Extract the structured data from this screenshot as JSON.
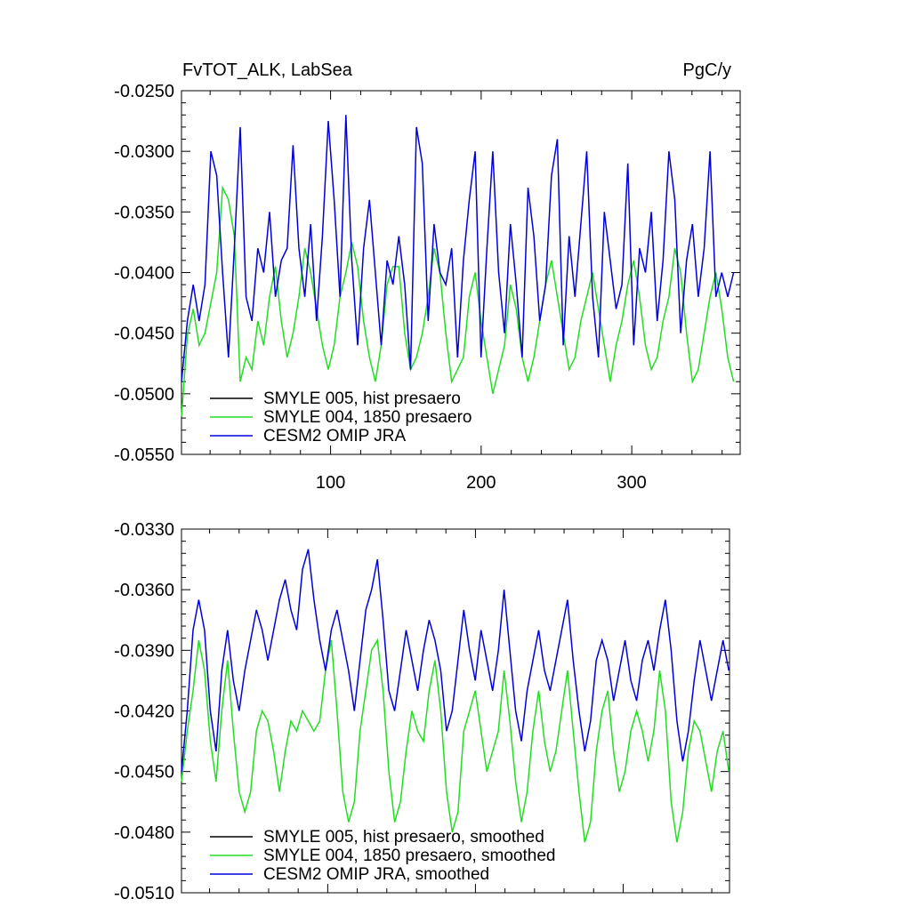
{
  "chart_data": [
    {
      "type": "line",
      "title_left": "FvTOT_ALK, LabSea",
      "title_right": "PgC/y",
      "xlabel": "",
      "ylabel": "",
      "xlim": [
        1,
        372
      ],
      "ylim": [
        -0.055,
        -0.025
      ],
      "xticks": [
        100,
        200,
        300
      ],
      "xtick_labels": [
        "100",
        "200",
        "300"
      ],
      "yticks": [
        -0.055,
        -0.05,
        -0.045,
        -0.04,
        -0.035,
        -0.03,
        -0.025
      ],
      "ytick_labels": [
        "-0.0550",
        "-0.0500",
        "-0.0450",
        "-0.0400",
        "-0.0350",
        "-0.0300",
        "-0.0250"
      ],
      "legend": [
        "SMYLE 005, hist presaero",
        "SMYLE 004, 1850 presaero",
        "CESM2 OMIP JRA"
      ],
      "legend_placement": "bottom-left",
      "colors": [
        "#000000",
        "#22dd22",
        "#0000dd"
      ],
      "grid": false,
      "series": [
        {
          "name": "SMYLE 005, hist presaero",
          "color": "#000000",
          "values": []
        },
        {
          "name": "SMYLE 004, 1850 presaero",
          "color": "#22dd22",
          "values": [
            -0.0519,
            -0.0452,
            -0.043,
            -0.046,
            -0.045,
            -0.0425,
            -0.04,
            -0.033,
            -0.034,
            -0.037,
            -0.049,
            -0.047,
            -0.048,
            -0.044,
            -0.046,
            -0.042,
            -0.0395,
            -0.044,
            -0.047,
            -0.045,
            -0.042,
            -0.038,
            -0.04,
            -0.043,
            -0.046,
            -0.048,
            -0.046,
            -0.042,
            -0.04,
            -0.0375,
            -0.0395,
            -0.044,
            -0.047,
            -0.049,
            -0.046,
            -0.041,
            -0.0395,
            -0.0395,
            -0.045,
            -0.048,
            -0.047,
            -0.045,
            -0.042,
            -0.038,
            -0.04,
            -0.045,
            -0.049,
            -0.048,
            -0.047,
            -0.042,
            -0.04,
            -0.044,
            -0.047,
            -0.05,
            -0.048,
            -0.046,
            -0.041,
            -0.043,
            -0.047,
            -0.049,
            -0.047,
            -0.044,
            -0.041,
            -0.039,
            -0.042,
            -0.045,
            -0.048,
            -0.047,
            -0.044,
            -0.042,
            -0.04,
            -0.043,
            -0.046,
            -0.049,
            -0.046,
            -0.044,
            -0.041,
            -0.039,
            -0.042,
            -0.046,
            -0.048,
            -0.047,
            -0.044,
            -0.042,
            -0.038,
            -0.04,
            -0.045,
            -0.049,
            -0.048,
            -0.045,
            -0.042,
            -0.04,
            -0.043,
            -0.047,
            -0.049
          ],
          "x_step": 3.9
        },
        {
          "name": "CESM2 OMIP JRA",
          "color": "#0000dd",
          "values": [
            -0.049,
            -0.044,
            -0.041,
            -0.044,
            -0.041,
            -0.03,
            -0.032,
            -0.04,
            -0.047,
            -0.038,
            -0.028,
            -0.042,
            -0.044,
            -0.038,
            -0.04,
            -0.035,
            -0.042,
            -0.039,
            -0.038,
            -0.0295,
            -0.038,
            -0.042,
            -0.036,
            -0.044,
            -0.037,
            -0.0275,
            -0.034,
            -0.042,
            -0.027,
            -0.039,
            -0.046,
            -0.038,
            -0.034,
            -0.04,
            -0.046,
            -0.039,
            -0.041,
            -0.037,
            -0.041,
            -0.048,
            -0.028,
            -0.031,
            -0.044,
            -0.036,
            -0.04,
            -0.041,
            -0.038,
            -0.047,
            -0.039,
            -0.034,
            -0.03,
            -0.047,
            -0.038,
            -0.03,
            -0.04,
            -0.045,
            -0.036,
            -0.041,
            -0.047,
            -0.033,
            -0.037,
            -0.044,
            -0.041,
            -0.032,
            -0.029,
            -0.046,
            -0.037,
            -0.042,
            -0.036,
            -0.03,
            -0.042,
            -0.047,
            -0.035,
            -0.039,
            -0.043,
            -0.041,
            -0.031,
            -0.046,
            -0.038,
            -0.04,
            -0.035,
            -0.044,
            -0.039,
            -0.03,
            -0.034,
            -0.045,
            -0.039,
            -0.036,
            -0.042,
            -0.038,
            -0.03,
            -0.042,
            -0.04,
            -0.042,
            -0.04
          ],
          "x_step": 3.9
        }
      ]
    },
    {
      "type": "line",
      "xlim": [
        1,
        372
      ],
      "ylim": [
        -0.051,
        -0.033
      ],
      "yticks": [
        -0.051,
        -0.048,
        -0.045,
        -0.042,
        -0.039,
        -0.036,
        -0.033
      ],
      "ytick_labels": [
        "-0.0510",
        "-0.0480",
        "-0.0450",
        "-0.0420",
        "-0.0390",
        "-0.0360",
        "-0.0330"
      ],
      "legend": [
        "SMYLE 005, hist presaero, smoothed",
        "SMYLE 004, 1850 presaero, smoothed",
        "CESM2 OMIP JRA, smoothed"
      ],
      "legend_placement": "bottom-left",
      "grid": false,
      "series": [
        {
          "name": "SMYLE 005, hist presaero, smoothed",
          "color": "#000000",
          "values": []
        },
        {
          "name": "SMYLE 004, 1850 presaero, smoothed",
          "color": "#22dd22",
          "values": [
            -0.0455,
            -0.043,
            -0.041,
            -0.0385,
            -0.04,
            -0.0435,
            -0.0455,
            -0.042,
            -0.0395,
            -0.043,
            -0.046,
            -0.047,
            -0.046,
            -0.043,
            -0.042,
            -0.0425,
            -0.044,
            -0.046,
            -0.044,
            -0.0425,
            -0.043,
            -0.042,
            -0.0425,
            -0.043,
            -0.0425,
            -0.04,
            -0.0385,
            -0.042,
            -0.046,
            -0.0475,
            -0.0465,
            -0.043,
            -0.041,
            -0.039,
            -0.0385,
            -0.041,
            -0.045,
            -0.0475,
            -0.0465,
            -0.044,
            -0.042,
            -0.043,
            -0.0435,
            -0.041,
            -0.0395,
            -0.042,
            -0.046,
            -0.048,
            -0.047,
            -0.043,
            -0.042,
            -0.041,
            -0.043,
            -0.045,
            -0.044,
            -0.043,
            -0.04,
            -0.0425,
            -0.0455,
            -0.0475,
            -0.046,
            -0.043,
            -0.041,
            -0.0435,
            -0.045,
            -0.044,
            -0.042,
            -0.04,
            -0.043,
            -0.046,
            -0.0485,
            -0.0475,
            -0.044,
            -0.042,
            -0.041,
            -0.044,
            -0.046,
            -0.045,
            -0.043,
            -0.042,
            -0.043,
            -0.0445,
            -0.043,
            -0.04,
            -0.042,
            -0.0465,
            -0.0485,
            -0.047,
            -0.044,
            -0.0425,
            -0.043,
            -0.0445,
            -0.046,
            -0.044,
            -0.043,
            -0.045
          ],
          "x_step": 3.9
        },
        {
          "name": "CESM2 OMIP JRA, smoothed",
          "color": "#0000dd",
          "values": [
            -0.045,
            -0.042,
            -0.038,
            -0.0365,
            -0.038,
            -0.042,
            -0.044,
            -0.04,
            -0.038,
            -0.0405,
            -0.042,
            -0.04,
            -0.0385,
            -0.037,
            -0.038,
            -0.0395,
            -0.038,
            -0.0365,
            -0.0355,
            -0.037,
            -0.038,
            -0.035,
            -0.034,
            -0.0365,
            -0.0385,
            -0.04,
            -0.038,
            -0.037,
            -0.0385,
            -0.04,
            -0.042,
            -0.0395,
            -0.037,
            -0.036,
            -0.0345,
            -0.0375,
            -0.041,
            -0.042,
            -0.04,
            -0.038,
            -0.0395,
            -0.041,
            -0.039,
            -0.0375,
            -0.0385,
            -0.04,
            -0.043,
            -0.042,
            -0.0395,
            -0.037,
            -0.039,
            -0.0405,
            -0.038,
            -0.0395,
            -0.041,
            -0.039,
            -0.036,
            -0.039,
            -0.042,
            -0.0435,
            -0.041,
            -0.0395,
            -0.038,
            -0.04,
            -0.041,
            -0.0395,
            -0.038,
            -0.0365,
            -0.0395,
            -0.042,
            -0.044,
            -0.0425,
            -0.0395,
            -0.0385,
            -0.0395,
            -0.0415,
            -0.04,
            -0.0385,
            -0.0405,
            -0.0415,
            -0.0395,
            -0.0385,
            -0.04,
            -0.038,
            -0.0365,
            -0.039,
            -0.0425,
            -0.0445,
            -0.043,
            -0.0405,
            -0.0385,
            -0.04,
            -0.0415,
            -0.04,
            -0.0385,
            -0.04
          ],
          "x_step": 3.9
        }
      ]
    }
  ]
}
